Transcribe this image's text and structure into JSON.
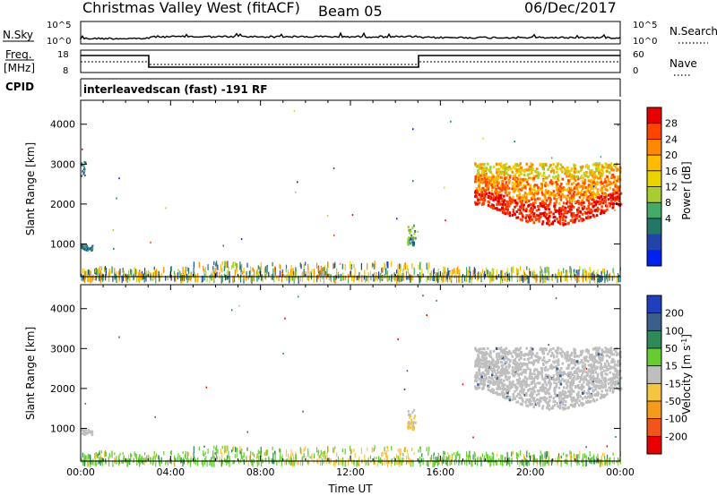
{
  "header": {
    "station": "Christmas Valley West (fitACF)",
    "beam": "Beam 05",
    "date": "06/Dec/2017"
  },
  "top_panels": {
    "nsky_label": "N.Sky",
    "nsearch_label": "N.Search",
    "nsky_ticks": [
      "10^5",
      "10^0"
    ],
    "nsearch_ticks": [
      "10^5",
      "10^0"
    ],
    "freq_label": "Freq.",
    "freq_unit": "[MHz]",
    "freq_ticks": [
      "18",
      "8"
    ],
    "nave_label": "Nave",
    "nave_ticks": [
      "60",
      "0"
    ],
    "cpid_label": "CPID",
    "cpid_text": "interleavedscan (fast) -191 RF"
  },
  "chart_data": [
    {
      "type": "heatmap",
      "name": "power-panel",
      "title": "",
      "xlabel": "",
      "ylabel": "Slant Range [km]",
      "x_ticks": [
        "00:00",
        "04:00",
        "08:00",
        "12:00",
        "16:00",
        "20:00",
        "00:00"
      ],
      "xlim_hours": [
        0,
        24
      ],
      "ylim_km": [
        180,
        4600
      ],
      "y_ticks": [
        1000,
        2000,
        3000,
        4000
      ],
      "colorbar": {
        "label": "Power [dB]",
        "ticks": [
          "28",
          "24",
          "20",
          "16",
          "12",
          "8",
          "4"
        ],
        "colors": [
          "#e60000",
          "#ff4400",
          "#ff8800",
          "#ffbb00",
          "#e8d400",
          "#aacc33",
          "#44aa66",
          "#227766",
          "#2244aa",
          "#0022ee"
        ]
      }
    },
    {
      "type": "heatmap",
      "name": "velocity-panel",
      "title": "",
      "xlabel": "Time UT",
      "ylabel": "Slant Range [km]",
      "x_ticks": [
        "00:00",
        "04:00",
        "08:00",
        "12:00",
        "16:00",
        "20:00",
        "00:00"
      ],
      "xlim_hours": [
        0,
        24
      ],
      "ylim_km": [
        180,
        4600
      ],
      "y_ticks": [
        1000,
        2000,
        3000,
        4000
      ],
      "colorbar": {
        "label": "Velocity [m s",
        "label_sup": "-1",
        "label_end": "]",
        "ticks": [
          "200",
          "100",
          "50",
          "15",
          "-15",
          "-50",
          "-100",
          "-200"
        ],
        "colors": [
          "#1f3fbf",
          "#3a5f8a",
          "#2f8a5a",
          "#66cc33",
          "#bebebe",
          "#f5c542",
          "#f59a1a",
          "#f2551a",
          "#e60000"
        ]
      }
    }
  ]
}
